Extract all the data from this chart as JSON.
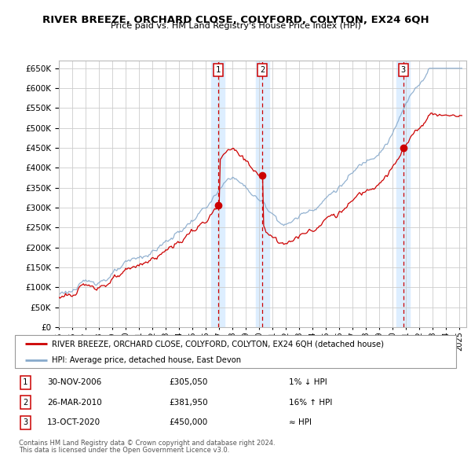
{
  "title": "RIVER BREEZE, ORCHARD CLOSE, COLYFORD, COLYTON, EX24 6QH",
  "subtitle": "Price paid vs. HM Land Registry's House Price Index (HPI)",
  "ylim": [
    0,
    670000
  ],
  "yticks": [
    0,
    50000,
    100000,
    150000,
    200000,
    250000,
    300000,
    350000,
    400000,
    450000,
    500000,
    550000,
    600000,
    650000
  ],
  "xlim_start": 1995.0,
  "xlim_end": 2025.5,
  "sale_dates": [
    2006.92,
    2010.24,
    2020.79
  ],
  "sale_prices": [
    305050,
    381950,
    450000
  ],
  "sale_labels": [
    "1",
    "2",
    "3"
  ],
  "red_line_color": "#cc0000",
  "blue_line_color": "#88aacc",
  "vline_color": "#cc0000",
  "highlight_bg_color": "#ddeeff",
  "grid_color": "#cccccc",
  "legend_line1": "RIVER BREEZE, ORCHARD CLOSE, COLYFORD, COLYTON, EX24 6QH (detached house)",
  "legend_line2": "HPI: Average price, detached house, East Devon",
  "table_rows": [
    {
      "num": "1",
      "date": "30-NOV-2006",
      "price": "£305,050",
      "hpi": "1% ↓ HPI"
    },
    {
      "num": "2",
      "date": "26-MAR-2010",
      "price": "£381,950",
      "hpi": "16% ↑ HPI"
    },
    {
      "num": "3",
      "date": "13-OCT-2020",
      "price": "£450,000",
      "hpi": "≈ HPI"
    }
  ],
  "footer1": "Contains HM Land Registry data © Crown copyright and database right 2024.",
  "footer2": "This data is licensed under the Open Government Licence v3.0."
}
